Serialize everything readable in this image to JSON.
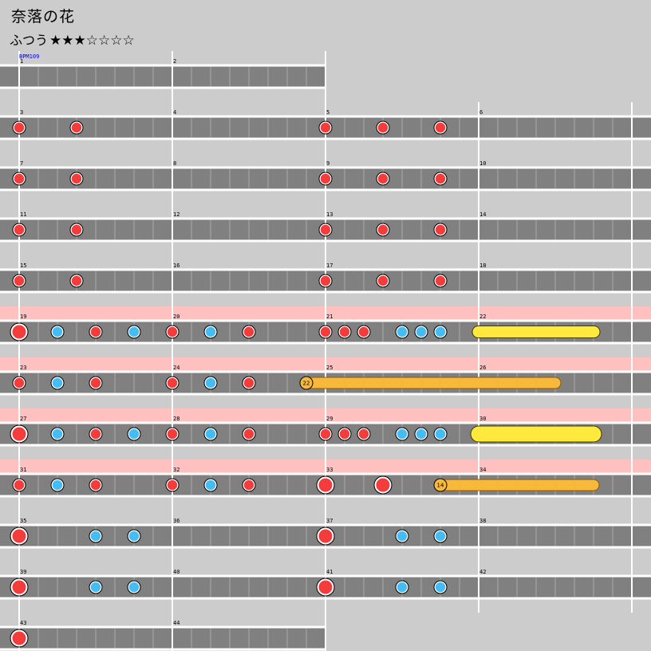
{
  "header": {
    "title": "奈落の花",
    "difficulty": "ふつう",
    "stars": "★★★☆☆☆☆"
  },
  "bpm_label": "BPM109",
  "colors": {
    "background": "#cccccc",
    "lane": "#808080",
    "lane_border": "#ffffff",
    "gogo": "#ffc0c0",
    "don": "#f43c3c",
    "ka": "#44bdf4",
    "balloon": "#f8b83a",
    "roll": "#ffe93c"
  },
  "rows": [
    {
      "start": 1,
      "measures": 2,
      "gogo": false,
      "notes": []
    },
    {
      "start": 3,
      "measures": 4,
      "gogo": false,
      "notes": [
        {
          "m": 0,
          "b": 0,
          "t": "don"
        },
        {
          "m": 0,
          "b": 3,
          "t": "don"
        },
        {
          "m": 2,
          "b": 0,
          "t": "don"
        },
        {
          "m": 2,
          "b": 3,
          "t": "don"
        },
        {
          "m": 2,
          "b": 6,
          "t": "don"
        }
      ]
    },
    {
      "start": 7,
      "measures": 4,
      "gogo": false,
      "notes": [
        {
          "m": 0,
          "b": 0,
          "t": "don"
        },
        {
          "m": 0,
          "b": 3,
          "t": "don"
        },
        {
          "m": 2,
          "b": 0,
          "t": "don"
        },
        {
          "m": 2,
          "b": 3,
          "t": "don"
        },
        {
          "m": 2,
          "b": 6,
          "t": "don"
        }
      ]
    },
    {
      "start": 11,
      "measures": 4,
      "gogo": false,
      "notes": [
        {
          "m": 0,
          "b": 0,
          "t": "don"
        },
        {
          "m": 0,
          "b": 3,
          "t": "don"
        },
        {
          "m": 2,
          "b": 0,
          "t": "don"
        },
        {
          "m": 2,
          "b": 3,
          "t": "don"
        },
        {
          "m": 2,
          "b": 6,
          "t": "don"
        }
      ]
    },
    {
      "start": 15,
      "measures": 4,
      "gogo": false,
      "notes": [
        {
          "m": 0,
          "b": 0,
          "t": "don"
        },
        {
          "m": 0,
          "b": 3,
          "t": "don"
        },
        {
          "m": 2,
          "b": 0,
          "t": "don"
        },
        {
          "m": 2,
          "b": 3,
          "t": "don"
        },
        {
          "m": 2,
          "b": 6,
          "t": "don"
        }
      ]
    },
    {
      "start": 19,
      "measures": 4,
      "gogo": true,
      "notes": [
        {
          "m": 0,
          "b": 0,
          "t": "DON"
        },
        {
          "m": 0,
          "b": 2,
          "t": "ka"
        },
        {
          "m": 0,
          "b": 4,
          "t": "don"
        },
        {
          "m": 0,
          "b": 6,
          "t": "ka"
        },
        {
          "m": 1,
          "b": 0,
          "t": "don"
        },
        {
          "m": 1,
          "b": 2,
          "t": "ka"
        },
        {
          "m": 1,
          "b": 4,
          "t": "don"
        },
        {
          "m": 2,
          "b": 0,
          "t": "don"
        },
        {
          "m": 2,
          "b": 1,
          "t": "don"
        },
        {
          "m": 2,
          "b": 2,
          "t": "don"
        },
        {
          "m": 2,
          "b": 4,
          "t": "ka"
        },
        {
          "m": 2,
          "b": 5,
          "t": "ka"
        },
        {
          "m": 2,
          "b": 6,
          "t": "ka"
        }
      ],
      "long": [
        {
          "type": "roll",
          "from": [
            3,
            0
          ],
          "to": [
            3,
            6
          ]
        }
      ]
    },
    {
      "start": 23,
      "measures": 4,
      "gogo": true,
      "notes": [
        {
          "m": 0,
          "b": 0,
          "t": "don"
        },
        {
          "m": 0,
          "b": 2,
          "t": "ka"
        },
        {
          "m": 0,
          "b": 4,
          "t": "don"
        },
        {
          "m": 1,
          "b": 0,
          "t": "don"
        },
        {
          "m": 1,
          "b": 2,
          "t": "ka"
        },
        {
          "m": 1,
          "b": 4,
          "t": "don"
        }
      ],
      "long": [
        {
          "type": "balloon",
          "count": "22",
          "from": [
            1,
            7
          ],
          "to": [
            3,
            4
          ]
        }
      ]
    },
    {
      "start": 27,
      "measures": 4,
      "gogo": true,
      "notes": [
        {
          "m": 0,
          "b": 0,
          "t": "DON"
        },
        {
          "m": 0,
          "b": 2,
          "t": "ka"
        },
        {
          "m": 0,
          "b": 4,
          "t": "don"
        },
        {
          "m": 0,
          "b": 6,
          "t": "ka"
        },
        {
          "m": 1,
          "b": 0,
          "t": "don"
        },
        {
          "m": 1,
          "b": 2,
          "t": "ka"
        },
        {
          "m": 1,
          "b": 4,
          "t": "don"
        },
        {
          "m": 2,
          "b": 0,
          "t": "don"
        },
        {
          "m": 2,
          "b": 1,
          "t": "don"
        },
        {
          "m": 2,
          "b": 2,
          "t": "don"
        },
        {
          "m": 2,
          "b": 4,
          "t": "ka"
        },
        {
          "m": 2,
          "b": 5,
          "t": "ka"
        },
        {
          "m": 2,
          "b": 6,
          "t": "ka"
        }
      ],
      "long": [
        {
          "type": "ROLL",
          "from": [
            3,
            0
          ],
          "to": [
            3,
            6
          ]
        }
      ]
    },
    {
      "start": 31,
      "measures": 4,
      "gogo": true,
      "notes": [
        {
          "m": 0,
          "b": 0,
          "t": "don"
        },
        {
          "m": 0,
          "b": 2,
          "t": "ka"
        },
        {
          "m": 0,
          "b": 4,
          "t": "don"
        },
        {
          "m": 1,
          "b": 0,
          "t": "don"
        },
        {
          "m": 1,
          "b": 2,
          "t": "ka"
        },
        {
          "m": 1,
          "b": 4,
          "t": "don"
        },
        {
          "m": 2,
          "b": 0,
          "t": "DON"
        },
        {
          "m": 2,
          "b": 3,
          "t": "DON"
        }
      ],
      "long": [
        {
          "type": "balloon",
          "count": "14",
          "from": [
            2,
            6
          ],
          "to": [
            3,
            6
          ]
        }
      ]
    },
    {
      "start": 35,
      "measures": 4,
      "gogo": false,
      "notes": [
        {
          "m": 0,
          "b": 0,
          "t": "DON"
        },
        {
          "m": 0,
          "b": 4,
          "t": "ka"
        },
        {
          "m": 0,
          "b": 6,
          "t": "ka"
        },
        {
          "m": 2,
          "b": 0,
          "t": "DON"
        },
        {
          "m": 2,
          "b": 4,
          "t": "ka"
        },
        {
          "m": 2,
          "b": 6,
          "t": "ka"
        }
      ]
    },
    {
      "start": 39,
      "measures": 4,
      "gogo": false,
      "notes": [
        {
          "m": 0,
          "b": 0,
          "t": "DON"
        },
        {
          "m": 0,
          "b": 4,
          "t": "ka"
        },
        {
          "m": 0,
          "b": 6,
          "t": "ka"
        },
        {
          "m": 2,
          "b": 0,
          "t": "DON"
        },
        {
          "m": 2,
          "b": 4,
          "t": "ka"
        },
        {
          "m": 2,
          "b": 6,
          "t": "ka"
        }
      ]
    },
    {
      "start": 43,
      "measures": 2,
      "gogo": false,
      "notes": [
        {
          "m": 0,
          "b": 0,
          "t": "DON"
        }
      ]
    }
  ]
}
